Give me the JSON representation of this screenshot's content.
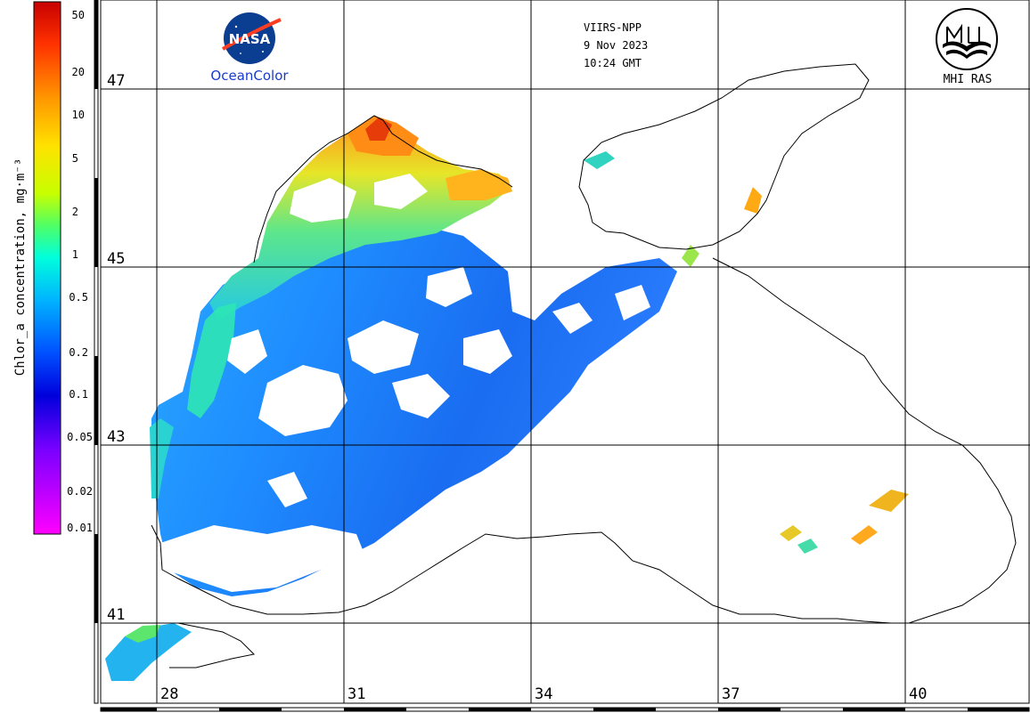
{
  "header": {
    "sensor": "VIIRS-NPP",
    "date": "9 Nov 2023",
    "time": "10:24 GMT"
  },
  "logos": {
    "nasa_mark": "NASA",
    "oceancolor": "OceanColor",
    "mhi_ras": "MHI RAS"
  },
  "colorbar": {
    "title": "Chlor_a concentration, mg·m⁻³",
    "ticks": [
      "50",
      "20",
      "10",
      "5",
      "2",
      "1",
      "0.5",
      "0.2",
      "0.1",
      "0.05",
      "0.02",
      "0.01"
    ],
    "colors": [
      "#dc0000",
      "#ff4b00",
      "#ff9600",
      "#ffd200",
      "#f0ff00",
      "#78ff50",
      "#00ffc8",
      "#00aaff",
      "#005aff",
      "#0000e6",
      "#8c00ff",
      "#ff00ff"
    ]
  },
  "latitudes": [
    "47",
    "45",
    "43",
    "41"
  ],
  "longitudes": [
    "28",
    "31",
    "34",
    "37",
    "40"
  ],
  "colors": {
    "coastline": "#000000",
    "grid": "#000000",
    "nasa_blue": "#0b3d91",
    "nasa_red": "#fc3d21",
    "oceancolor_blue": "#1a3ccc"
  }
}
